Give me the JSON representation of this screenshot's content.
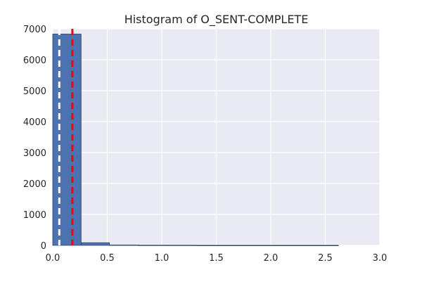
{
  "chart_data": {
    "type": "bar",
    "title": "Histogram of O_SENT-COMPLETE",
    "xlabel": "",
    "ylabel": "",
    "xlim": [
      0.0,
      3.0
    ],
    "ylim": [
      0,
      7000
    ],
    "x_ticks": [
      "0.0",
      "0.5",
      "1.0",
      "1.5",
      "2.0",
      "2.5",
      "3.0"
    ],
    "x_tick_values": [
      0.0,
      0.5,
      1.0,
      1.5,
      2.0,
      2.5,
      3.0
    ],
    "y_ticks": [
      "0",
      "1000",
      "2000",
      "3000",
      "4000",
      "5000",
      "6000",
      "7000"
    ],
    "y_tick_values": [
      0,
      1000,
      2000,
      3000,
      4000,
      5000,
      6000,
      7000
    ],
    "grid": true,
    "bins": [
      {
        "x0": 0.0,
        "x1": 0.26,
        "count": 6830
      },
      {
        "x0": 0.26,
        "x1": 0.52,
        "count": 85
      },
      {
        "x0": 0.52,
        "x1": 0.79,
        "count": 10
      },
      {
        "x0": 0.79,
        "x1": 1.05,
        "count": 5
      },
      {
        "x0": 1.05,
        "x1": 1.31,
        "count": 3
      },
      {
        "x0": 1.31,
        "x1": 1.57,
        "count": 1
      },
      {
        "x0": 1.57,
        "x1": 1.83,
        "count": 1
      },
      {
        "x0": 1.83,
        "x1": 2.09,
        "count": 1
      },
      {
        "x0": 2.09,
        "x1": 2.36,
        "count": 1
      },
      {
        "x0": 2.36,
        "x1": 2.62,
        "count": 1
      }
    ],
    "reference_lines": [
      {
        "x": 0.06,
        "color": "#ffffff",
        "style": "dashed"
      },
      {
        "x": 0.18,
        "color": "#ff0000",
        "style": "dashed"
      }
    ],
    "colors": {
      "bar_fill": "#4c72b0",
      "bar_edge": "#2a3f66",
      "plot_background": "#eaeaf2",
      "grid": "#ffffff"
    }
  }
}
